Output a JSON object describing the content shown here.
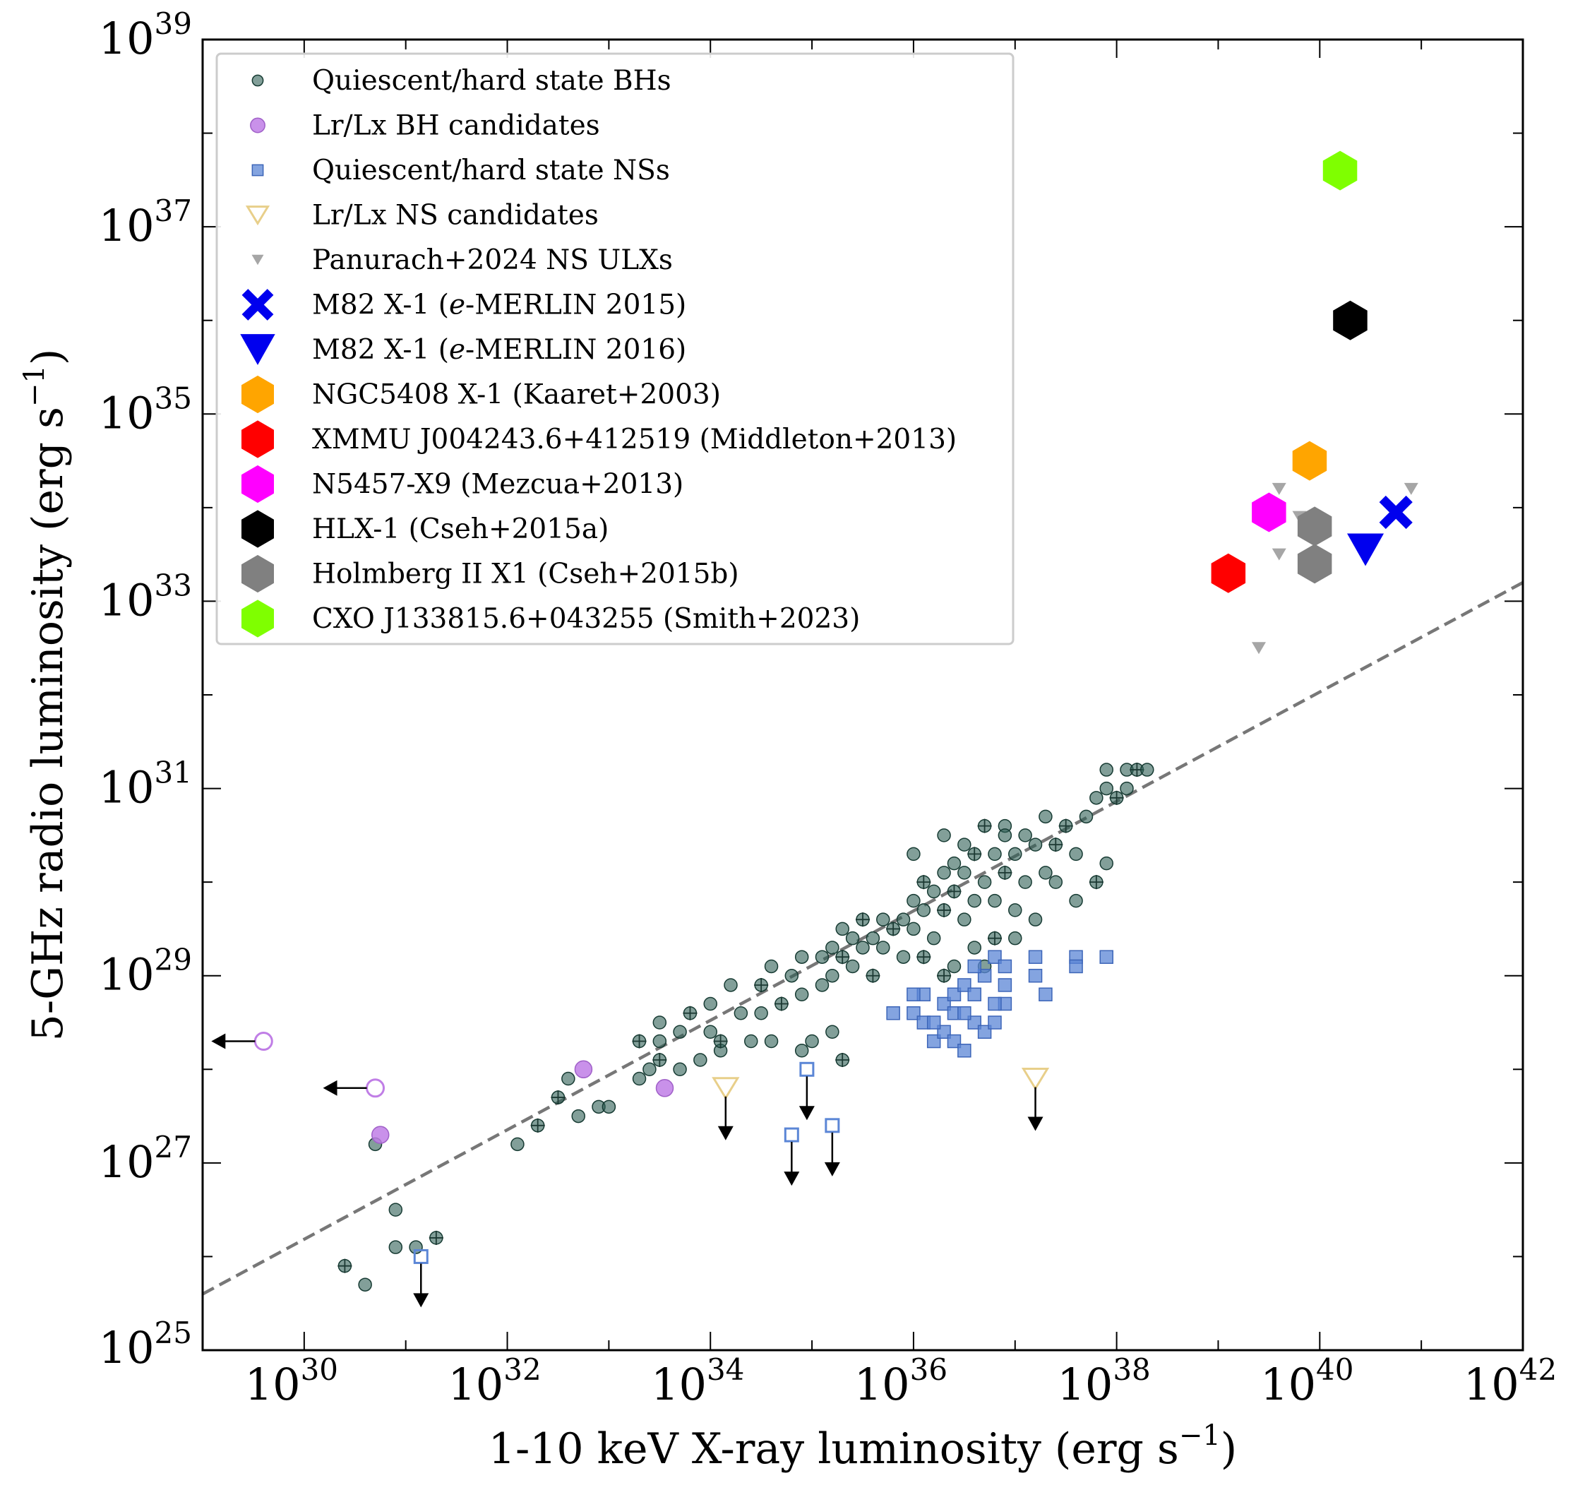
{
  "chart_data": {
    "type": "scatter",
    "title": "",
    "xlabel": "1-10 keV X-ray luminosity (erg s$^{-1}$)",
    "xlabel_parts": [
      "1-10 keV X-ray luminosity (erg s",
      "−1",
      ")"
    ],
    "ylabel": "5-GHz radio luminosity (erg s$^{-1}$)",
    "ylabel_parts": [
      "5-GHz radio luminosity (erg s",
      "−1",
      ")"
    ],
    "xscale": "log",
    "yscale": "log",
    "xlim_log10": [
      29,
      42
    ],
    "ylim_log10": [
      25,
      39
    ],
    "xticks": [
      {
        "base": "10",
        "exp": "30",
        "v": 30
      },
      {
        "base": "10",
        "exp": "32",
        "v": 32
      },
      {
        "base": "10",
        "exp": "34",
        "v": 34
      },
      {
        "base": "10",
        "exp": "36",
        "v": 36
      },
      {
        "base": "10",
        "exp": "38",
        "v": 38
      },
      {
        "base": "10",
        "exp": "40",
        "v": 40
      },
      {
        "base": "10",
        "exp": "42",
        "v": 42
      }
    ],
    "yticks": [
      {
        "base": "10",
        "exp": "25",
        "v": 25
      },
      {
        "base": "10",
        "exp": "27",
        "v": 27
      },
      {
        "base": "10",
        "exp": "29",
        "v": 29
      },
      {
        "base": "10",
        "exp": "31",
        "v": 31
      },
      {
        "base": "10",
        "exp": "33",
        "v": 33
      },
      {
        "base": "10",
        "exp": "35",
        "v": 35
      },
      {
        "base": "10",
        "exp": "37",
        "v": 37
      },
      {
        "base": "10",
        "exp": "39",
        "v": 39
      }
    ],
    "legend_position": "upper-left",
    "reference_line": {
      "name": "Lr-Lx correlation (dashed)",
      "x_log10": [
        29,
        42
      ],
      "y_log10": [
        25.6,
        33.2
      ],
      "color": "#777777"
    },
    "series": [
      {
        "name": "Quiescent/hard state BHs",
        "marker": "circle-small",
        "color": "#2f5f55",
        "points_log10": [
          [
            30.4,
            25.9
          ],
          [
            30.6,
            25.7
          ],
          [
            30.9,
            26.1
          ],
          [
            31.1,
            26.1
          ],
          [
            31.3,
            26.2
          ],
          [
            30.9,
            26.5
          ],
          [
            30.7,
            27.2
          ],
          [
            32.1,
            27.2
          ],
          [
            32.3,
            27.4
          ],
          [
            32.7,
            27.5
          ],
          [
            32.9,
            27.6
          ],
          [
            33.0,
            27.6
          ],
          [
            32.5,
            27.7
          ],
          [
            32.6,
            27.9
          ],
          [
            33.3,
            27.9
          ],
          [
            33.4,
            28.0
          ],
          [
            33.5,
            28.1
          ],
          [
            33.7,
            28.0
          ],
          [
            33.9,
            28.1
          ],
          [
            34.1,
            28.2
          ],
          [
            33.3,
            28.3
          ],
          [
            33.5,
            28.3
          ],
          [
            33.7,
            28.4
          ],
          [
            34.0,
            28.4
          ],
          [
            34.1,
            28.3
          ],
          [
            34.4,
            28.3
          ],
          [
            34.6,
            28.3
          ],
          [
            34.9,
            28.2
          ],
          [
            35.3,
            28.1
          ],
          [
            35.0,
            28.3
          ],
          [
            35.2,
            28.4
          ],
          [
            33.5,
            28.5
          ],
          [
            33.8,
            28.6
          ],
          [
            34.0,
            28.7
          ],
          [
            34.3,
            28.6
          ],
          [
            34.5,
            28.6
          ],
          [
            34.7,
            28.7
          ],
          [
            34.9,
            28.8
          ],
          [
            35.1,
            28.9
          ],
          [
            34.2,
            28.9
          ],
          [
            34.5,
            28.9
          ],
          [
            34.8,
            29.0
          ],
          [
            35.2,
            29.0
          ],
          [
            35.4,
            29.1
          ],
          [
            35.6,
            29.0
          ],
          [
            34.6,
            29.1
          ],
          [
            34.9,
            29.2
          ],
          [
            35.1,
            29.2
          ],
          [
            35.3,
            29.2
          ],
          [
            35.5,
            29.3
          ],
          [
            35.7,
            29.3
          ],
          [
            35.9,
            29.2
          ],
          [
            36.1,
            29.2
          ],
          [
            35.2,
            29.3
          ],
          [
            35.4,
            29.4
          ],
          [
            35.6,
            29.4
          ],
          [
            35.8,
            29.5
          ],
          [
            36.0,
            29.5
          ],
          [
            36.2,
            29.4
          ],
          [
            35.3,
            29.5
          ],
          [
            35.5,
            29.6
          ],
          [
            35.7,
            29.6
          ],
          [
            35.9,
            29.6
          ],
          [
            36.1,
            29.7
          ],
          [
            36.3,
            29.7
          ],
          [
            36.5,
            29.6
          ],
          [
            36.0,
            29.8
          ],
          [
            36.2,
            29.9
          ],
          [
            36.4,
            29.9
          ],
          [
            36.6,
            29.8
          ],
          [
            36.8,
            29.8
          ],
          [
            37.0,
            29.7
          ],
          [
            36.1,
            30.0
          ],
          [
            36.3,
            30.1
          ],
          [
            36.5,
            30.1
          ],
          [
            36.7,
            30.0
          ],
          [
            36.9,
            30.1
          ],
          [
            37.1,
            30.0
          ],
          [
            37.3,
            30.1
          ],
          [
            36.4,
            30.2
          ],
          [
            36.6,
            30.3
          ],
          [
            36.8,
            30.3
          ],
          [
            37.0,
            30.3
          ],
          [
            37.2,
            30.4
          ],
          [
            37.4,
            30.4
          ],
          [
            37.6,
            30.3
          ],
          [
            36.3,
            30.5
          ],
          [
            36.5,
            30.4
          ],
          [
            36.7,
            30.6
          ],
          [
            36.9,
            30.6
          ],
          [
            37.1,
            30.5
          ],
          [
            37.3,
            30.7
          ],
          [
            37.5,
            30.6
          ],
          [
            37.7,
            30.7
          ],
          [
            37.8,
            30.9
          ],
          [
            37.9,
            31.0
          ],
          [
            38.0,
            30.9
          ],
          [
            38.1,
            31.0
          ],
          [
            38.1,
            31.2
          ],
          [
            37.9,
            31.2
          ],
          [
            38.2,
            31.2
          ],
          [
            38.3,
            31.2
          ],
          [
            36.0,
            30.3
          ],
          [
            37.6,
            29.8
          ],
          [
            37.8,
            30.0
          ],
          [
            37.9,
            30.2
          ],
          [
            36.4,
            29.1
          ],
          [
            36.6,
            29.3
          ],
          [
            36.8,
            29.4
          ],
          [
            37.0,
            29.4
          ],
          [
            37.2,
            29.6
          ],
          [
            36.7,
            29.1
          ],
          [
            36.3,
            29.0
          ],
          [
            37.4,
            30.0
          ],
          [
            36.9,
            30.5
          ]
        ],
        "error_bars": true
      },
      {
        "name": "Lr/Lx BH candidates",
        "marker": "circle",
        "color": "#c07ee6",
        "points_log10": [
          [
            30.75,
            27.3
          ],
          [
            32.75,
            28.0
          ],
          [
            33.55,
            27.8
          ]
        ],
        "upper_limits_log10": [
          [
            29.6,
            28.3
          ],
          [
            30.7,
            27.8
          ]
        ]
      },
      {
        "name": "Quiescent/hard state NSs",
        "marker": "square",
        "color": "#5b86d6",
        "points_log10": [
          [
            35.8,
            28.6
          ],
          [
            36.0,
            28.6
          ],
          [
            36.1,
            28.5
          ],
          [
            36.2,
            28.3
          ],
          [
            36.3,
            28.4
          ],
          [
            36.4,
            28.3
          ],
          [
            36.5,
            28.2
          ],
          [
            36.1,
            28.8
          ],
          [
            36.3,
            28.7
          ],
          [
            36.4,
            28.6
          ],
          [
            36.6,
            28.5
          ],
          [
            36.7,
            28.4
          ],
          [
            36.8,
            28.5
          ],
          [
            36.9,
            28.7
          ],
          [
            36.4,
            28.8
          ],
          [
            36.5,
            28.9
          ],
          [
            36.6,
            28.8
          ],
          [
            36.7,
            29.0
          ],
          [
            36.8,
            28.7
          ],
          [
            36.9,
            28.9
          ],
          [
            36.2,
            28.5
          ],
          [
            36.0,
            28.8
          ],
          [
            36.5,
            28.6
          ],
          [
            36.6,
            29.1
          ],
          [
            36.8,
            29.2
          ],
          [
            36.9,
            29.1
          ],
          [
            37.2,
            29.0
          ],
          [
            37.2,
            29.2
          ],
          [
            37.3,
            28.8
          ],
          [
            37.6,
            29.2
          ],
          [
            37.6,
            29.1
          ],
          [
            37.9,
            29.2
          ]
        ],
        "upper_limits_log10": [
          [
            31.15,
            26.0
          ],
          [
            34.8,
            27.3
          ],
          [
            34.95,
            28.0
          ],
          [
            35.2,
            27.4
          ]
        ]
      },
      {
        "name": "Lr/Lx NS candidates",
        "marker": "triangle-down-open",
        "color": "#e8cf8a",
        "points_log10": [
          [
            34.15,
            27.8
          ],
          [
            37.2,
            27.9
          ]
        ],
        "upper_limits": true
      },
      {
        "name": "Panurach+2024 NS ULXs",
        "marker": "triangle-down-small",
        "color": "#a6a6a6",
        "points_log10": [
          [
            39.4,
            32.5
          ],
          [
            39.6,
            33.5
          ],
          [
            39.6,
            34.2
          ],
          [
            39.8,
            33.9
          ],
          [
            40.0,
            33.3
          ],
          [
            40.9,
            34.2
          ]
        ]
      },
      {
        "name": "M82 X-1 (e-MERLIN 2015)",
        "marker": "x-bold",
        "color": "#0000ee",
        "points_log10": [
          [
            40.75,
            33.95
          ]
        ]
      },
      {
        "name": "M82 X-1 (e-MERLIN 2016)",
        "marker": "triangle-down",
        "color": "#0000ee",
        "points_log10": [
          [
            40.45,
            33.55
          ]
        ]
      },
      {
        "name": "NGC5408 X-1 (Kaaret+2003)",
        "marker": "hexagon",
        "color": "#ffa500",
        "points_log10": [
          [
            39.9,
            34.5
          ]
        ]
      },
      {
        "name": "XMMU J004243.6+412519 (Middleton+2013)",
        "marker": "hexagon",
        "color": "#ff0000",
        "points_log10": [
          [
            39.1,
            33.3
          ]
        ]
      },
      {
        "name": "N5457-X9 (Mezcua+2013)",
        "marker": "hexagon",
        "color": "#ff00ff",
        "points_log10": [
          [
            39.5,
            33.95
          ]
        ]
      },
      {
        "name": "HLX-1 (Cseh+2015a)",
        "marker": "hexagon",
        "color": "#000000",
        "points_log10": [
          [
            40.3,
            36.0
          ]
        ]
      },
      {
        "name": "Holmberg II X1 (Cseh+2015b)",
        "marker": "hexagon",
        "color": "#808080",
        "points_log10": [
          [
            39.95,
            33.8
          ],
          [
            39.95,
            33.4
          ]
        ]
      },
      {
        "name": "CXO J133815.6+043255 (Smith+2023)",
        "marker": "hexagon",
        "color": "#7fff00",
        "points_log10": [
          [
            40.2,
            37.6
          ]
        ]
      }
    ],
    "legend_entries": [
      {
        "label": "Quiescent/hard state BHs",
        "marker": "circle-small",
        "color": "#2f5f55"
      },
      {
        "label": "Lr/Lx BH candidates",
        "marker": "circle",
        "color": "#c07ee6"
      },
      {
        "label": "Quiescent/hard state NSs",
        "marker": "square",
        "color": "#5b86d6"
      },
      {
        "label": "Lr/Lx NS candidates",
        "marker": "triangle-down-open",
        "color": "#e8cf8a"
      },
      {
        "label": "Panurach+2024 NS ULXs",
        "marker": "triangle-down-small",
        "color": "#a6a6a6"
      },
      {
        "label": "M82 X-1 (e-MERLIN 2015)",
        "marker": "x-bold",
        "color": "#0000ee"
      },
      {
        "label": "M82 X-1 (e-MERLIN 2016)",
        "marker": "triangle-down",
        "color": "#0000ee"
      },
      {
        "label": "NGC5408 X-1 (Kaaret+2003)",
        "marker": "hexagon",
        "color": "#ffa500"
      },
      {
        "label": "XMMU J004243.6+412519 (Middleton+2013)",
        "marker": "hexagon",
        "color": "#ff0000"
      },
      {
        "label": "N5457-X9 (Mezcua+2013)",
        "marker": "hexagon",
        "color": "#ff00ff"
      },
      {
        "label": "HLX-1 (Cseh+2015a)",
        "marker": "hexagon",
        "color": "#000000"
      },
      {
        "label": "Holmberg II X1 (Cseh+2015b)",
        "marker": "hexagon",
        "color": "#808080"
      },
      {
        "label": "CXO J133815.6+043255 (Smith+2023)",
        "marker": "hexagon",
        "color": "#7fff00"
      }
    ]
  }
}
